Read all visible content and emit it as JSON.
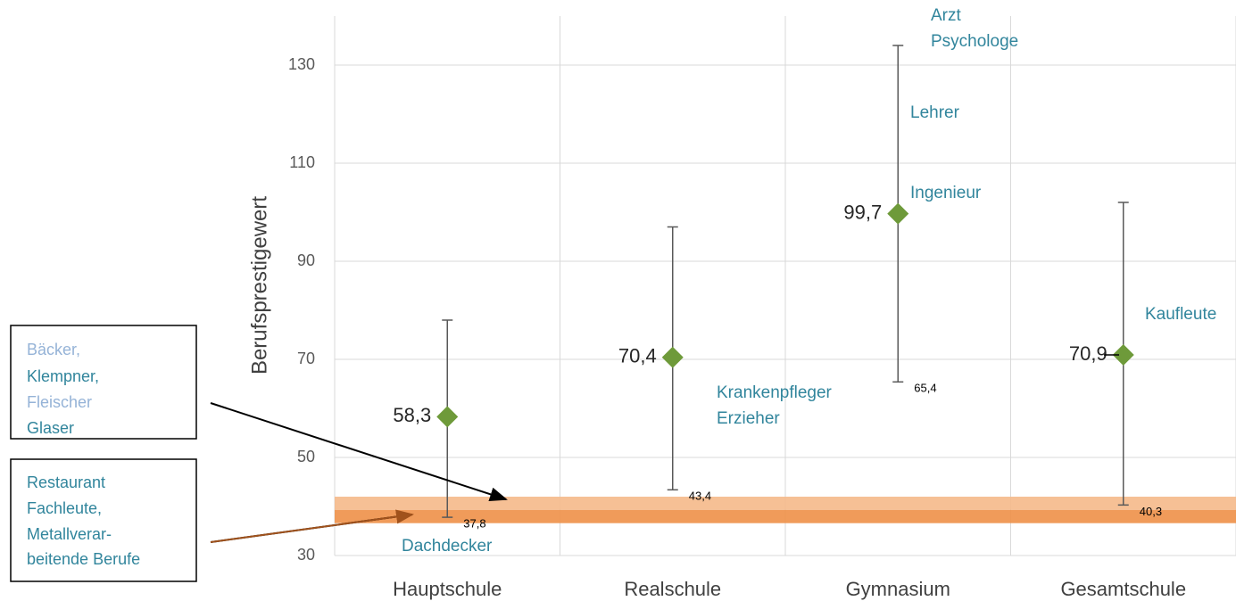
{
  "chart_data": {
    "type": "errorbar",
    "y_label": "Berufsprestigewert",
    "categories": [
      "Hauptschule",
      "Realschule",
      "Gymnasium",
      "Gesamtschule"
    ],
    "values": [
      58.3,
      70.4,
      99.7,
      70.9
    ],
    "value_labels": [
      "58,3",
      "70,4",
      "99,7",
      "70,9"
    ],
    "low": [
      37.8,
      43.4,
      65.4,
      40.3
    ],
    "low_labels": [
      "37,8",
      "43,4",
      "65,4",
      "40,3"
    ],
    "high": [
      78,
      97,
      134,
      102
    ],
    "color": "#6e9a3a",
    "ylim": [
      30,
      140
    ],
    "yticks": [
      30,
      50,
      70,
      90,
      110,
      130
    ],
    "grid": true,
    "bands": [
      {
        "from": 39.3,
        "to": 42,
        "color": "#f5b98a"
      },
      {
        "from": 36.6,
        "to": 39.3,
        "color": "#ee9048"
      }
    ],
    "annotations": [
      "Arzt",
      "Psychologe",
      "Lehrer",
      "Ingenieur",
      "Krankenpfleger",
      "Erzieher",
      "Kaufleute",
      "Dachdecker"
    ],
    "boxes": [
      {
        "lines": [
          "Bäcker,",
          "Klempner,",
          "Fleischer",
          "Glaser"
        ]
      },
      {
        "lines": [
          "Restaurant",
          "Fachleute,",
          "Metallverar-",
          "beitende Berufe"
        ]
      }
    ]
  }
}
